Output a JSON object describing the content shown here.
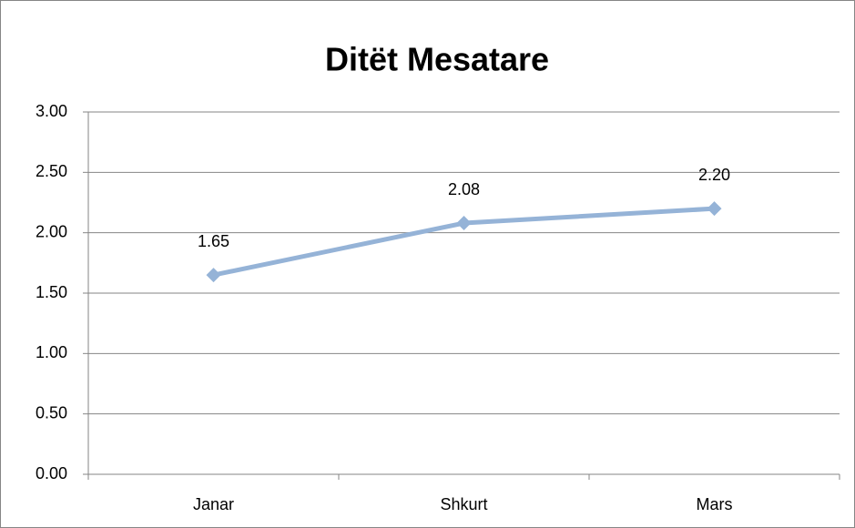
{
  "chart_data": {
    "type": "line",
    "title": "Ditët Mesatare",
    "categories": [
      "Janar",
      "Shkurt",
      "Mars"
    ],
    "values": [
      1.65,
      2.08,
      2.2
    ],
    "value_labels": [
      "1.65",
      "2.08",
      "2.20"
    ],
    "color": "#95b3d7",
    "ylim": [
      0,
      3
    ],
    "yticks": [
      {
        "value": 0,
        "label": "0.00"
      },
      {
        "value": 0.5,
        "label": "0.50"
      },
      {
        "value": 1,
        "label": "1.00"
      },
      {
        "value": 1.5,
        "label": "1.50"
      },
      {
        "value": 2,
        "label": "2.00"
      },
      {
        "value": 2.5,
        "label": "2.50"
      },
      {
        "value": 3,
        "label": "3.00"
      }
    ],
    "grid": true
  }
}
